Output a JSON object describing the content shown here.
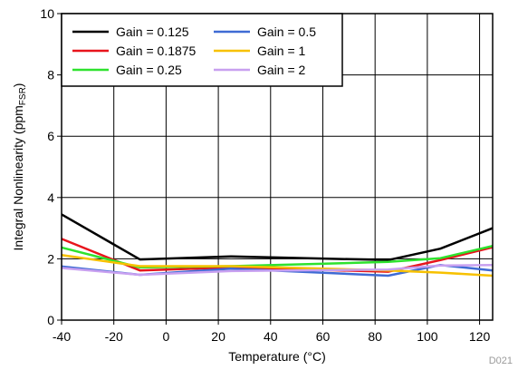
{
  "chart_data": {
    "type": "line",
    "xlabel": "Temperature (°C)",
    "ylabel_main": "Integral Nonlinearity (ppm",
    "ylabel_sub": "FSR",
    "ylabel_close": ")",
    "xlim": [
      -40,
      125
    ],
    "ylim": [
      0,
      10
    ],
    "xticks": [
      -40,
      -20,
      0,
      20,
      40,
      60,
      80,
      100,
      120
    ],
    "yticks": [
      0,
      2,
      4,
      6,
      8,
      10
    ],
    "grid": true,
    "legend_position": "top-left",
    "footnote": "D021",
    "series": [
      {
        "name": "Gain = 0.125",
        "color": "#000000",
        "x": [
          -40,
          -10,
          25,
          85,
          105,
          125
        ],
        "y": [
          3.45,
          1.98,
          2.08,
          1.96,
          2.33,
          3.0
        ]
      },
      {
        "name": "Gain = 0.1875",
        "color": "#e8141c",
        "x": [
          -40,
          -10,
          25,
          85,
          105,
          125
        ],
        "y": [
          2.65,
          1.62,
          1.72,
          1.58,
          1.96,
          2.38
        ]
      },
      {
        "name": "Gain = 0.25",
        "color": "#2ee22e",
        "x": [
          -40,
          -10,
          25,
          85,
          105,
          125
        ],
        "y": [
          2.37,
          1.72,
          1.76,
          1.9,
          2.02,
          2.42
        ]
      },
      {
        "name": "Gain = 0.5",
        "color": "#3f6bd4",
        "x": [
          -40,
          -10,
          25,
          85,
          105,
          125
        ],
        "y": [
          1.75,
          1.48,
          1.68,
          1.45,
          1.8,
          1.62
        ]
      },
      {
        "name": "Gain = 1",
        "color": "#f7c100",
        "x": [
          -40,
          -10,
          25,
          85,
          105,
          125
        ],
        "y": [
          2.12,
          1.76,
          1.76,
          1.62,
          1.55,
          1.45
        ]
      },
      {
        "name": "Gain = 2",
        "color": "#c8a0f0",
        "x": [
          -40,
          -10,
          25,
          85,
          105,
          125
        ],
        "y": [
          1.7,
          1.48,
          1.6,
          1.65,
          1.78,
          1.8
        ]
      }
    ]
  }
}
